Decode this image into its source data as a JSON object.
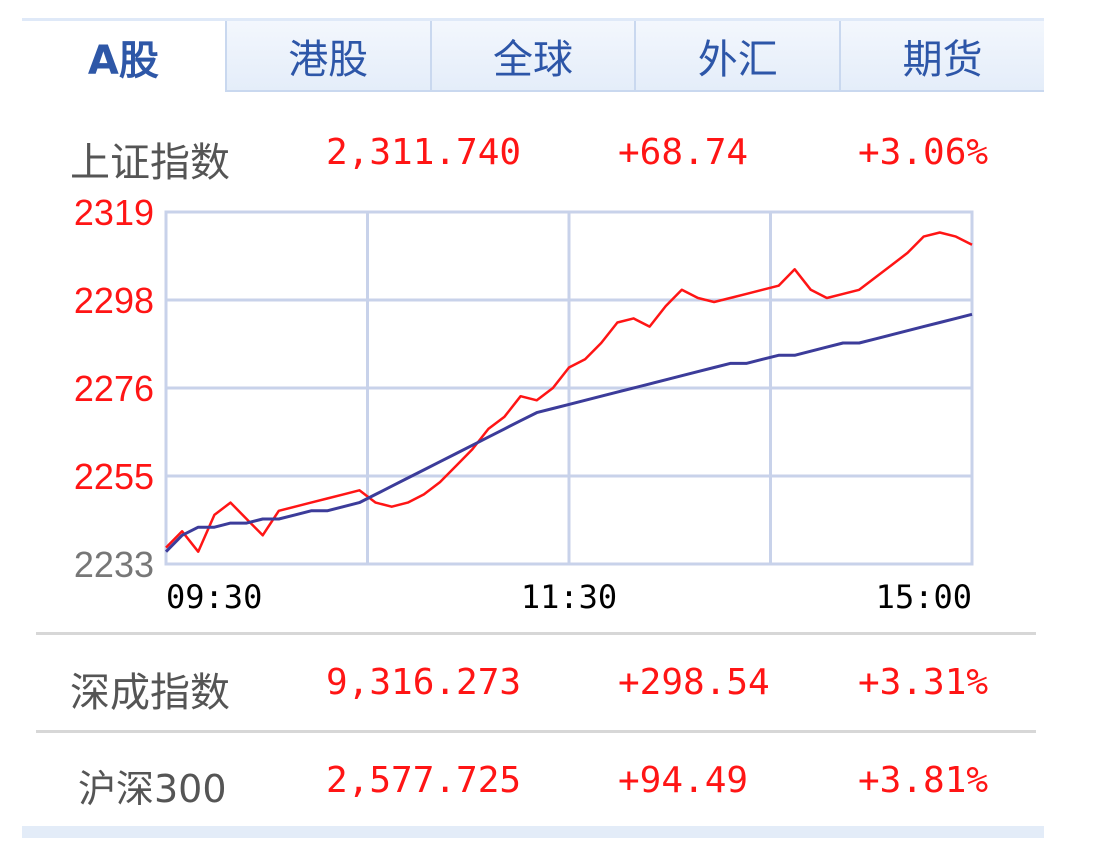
{
  "tabs": [
    {
      "label": "A股",
      "active": true
    },
    {
      "label": "港股",
      "active": false
    },
    {
      "label": "全球",
      "active": false
    },
    {
      "label": "外汇",
      "active": false
    },
    {
      "label": "期货",
      "active": false
    }
  ],
  "indices": {
    "shanghai": {
      "name": "上证指数",
      "price": "2,311.740",
      "change": "+68.74",
      "pct": "+3.06%"
    },
    "shenzhen": {
      "name": "深成指数",
      "price": "9,316.273",
      "change": "+298.54",
      "pct": "+3.31%"
    },
    "hs300": {
      "name": "沪深300",
      "price": "2,577.725",
      "change": "+94.49",
      "pct": "+3.81%"
    }
  },
  "colors": {
    "up": "#ff1515",
    "avg_line": "#3c3c9a",
    "grid": "#c8d2ea",
    "tab_text": "#2d56a8"
  },
  "chart_data": {
    "type": "line",
    "ylim": [
      2233,
      2319
    ],
    "y_ticks": [
      "2319",
      "2298",
      "2276",
      "2255",
      "2233"
    ],
    "x_ticks": [
      "09:30",
      "11:30",
      "15:00"
    ],
    "x": [
      0,
      2,
      4,
      6,
      8,
      10,
      12,
      14,
      16,
      18,
      20,
      22,
      24,
      26,
      28,
      30,
      32,
      34,
      36,
      38,
      40,
      42,
      44,
      46,
      48,
      50,
      52,
      54,
      56,
      58,
      60,
      62,
      64,
      66,
      68,
      70,
      72,
      74,
      76,
      78,
      80,
      82,
      84,
      86,
      88,
      90,
      92,
      94,
      96,
      98,
      100
    ],
    "series": [
      {
        "values": [
          2237,
          2241,
          2236,
          2245,
          2248,
          2244,
          2240,
          2246,
          2247,
          2248,
          2249,
          2250,
          2251,
          2248,
          2247,
          2248,
          2250,
          2253,
          2257,
          2261,
          2266,
          2269,
          2274,
          2273,
          2276,
          2281,
          2283,
          2287,
          2292,
          2293,
          2291,
          2296,
          2300,
          2298,
          2297,
          2298,
          2299,
          2300,
          2301,
          2305,
          2300,
          2298,
          2299,
          2300,
          2303,
          2306,
          2309,
          2313,
          2314,
          2313,
          2311
        ]
      },
      {
        "values": [
          2236,
          2240,
          2242,
          2242,
          2243,
          2243,
          2244,
          2244,
          2245,
          2246,
          2246,
          2247,
          2248,
          2250,
          2252,
          2254,
          2256,
          2258,
          2260,
          2262,
          2264,
          2266,
          2268,
          2270,
          2271,
          2272,
          2273,
          2274,
          2275,
          2276,
          2277,
          2278,
          2279,
          2280,
          2281,
          2282,
          2282,
          2283,
          2284,
          2284,
          2285,
          2286,
          2287,
          2287,
          2288,
          2289,
          2290,
          2291,
          2292,
          2293,
          2294
        ]
      }
    ]
  }
}
